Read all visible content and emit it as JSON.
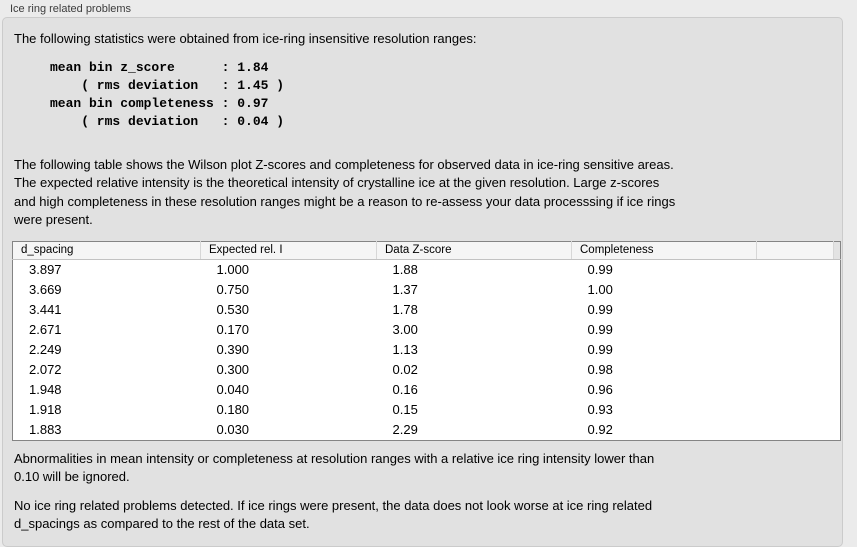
{
  "panel": {
    "title": "Ice ring related problems"
  },
  "intro": "The following statistics were obtained from ice-ring insensitive resolution ranges:",
  "stats": {
    "lines": [
      "mean bin z_score      : 1.84",
      "    ( rms deviation   : 1.45 )",
      "mean bin completeness : 0.97",
      "    ( rms deviation   : 0.04 )"
    ]
  },
  "description": {
    "lines": [
      "The following table shows the Wilson plot Z-scores and completeness for observed data in ice-ring sensitive areas.",
      "The expected relative intensity is the theoretical intensity of crystalline ice at the given resolution. Large z-scores",
      "and high completeness in these resolution ranges might be a reason to re-assess your data processsing if ice rings",
      "were present."
    ]
  },
  "table": {
    "columns": [
      "d_spacing",
      "Expected rel. I",
      "Data Z-score",
      "Completeness",
      ""
    ],
    "rows": [
      [
        "3.897",
        "1.000",
        "1.88",
        "0.99"
      ],
      [
        "3.669",
        "0.750",
        "1.37",
        "1.00"
      ],
      [
        "3.441",
        "0.530",
        "1.78",
        "0.99"
      ],
      [
        "2.671",
        "0.170",
        "3.00",
        "0.99"
      ],
      [
        "2.249",
        "0.390",
        "1.13",
        "0.99"
      ],
      [
        "2.072",
        "0.300",
        "0.02",
        "0.98"
      ],
      [
        "1.948",
        "0.040",
        "0.16",
        "0.96"
      ],
      [
        "1.918",
        "0.180",
        "0.15",
        "0.93"
      ],
      [
        "1.883",
        "0.030",
        "2.29",
        "0.92"
      ]
    ]
  },
  "note": {
    "lines": [
      "Abnormalities in mean intensity or completeness at resolution ranges with a relative ice ring intensity lower than",
      "0.10 will be ignored."
    ]
  },
  "conclusion": {
    "lines": [
      "No ice ring related problems detected. If ice rings were present, the data does not look worse at ice ring related",
      "d_spacings as compared to the rest of the data set."
    ]
  },
  "colors": {
    "page_bg": "#ebebeb",
    "panel_bg": "#e1e1e1",
    "panel_border": "#cbcbcb",
    "table_border": "#848484",
    "table_header_bg": "#f5f5f5",
    "row_bg": "#ffffff"
  }
}
